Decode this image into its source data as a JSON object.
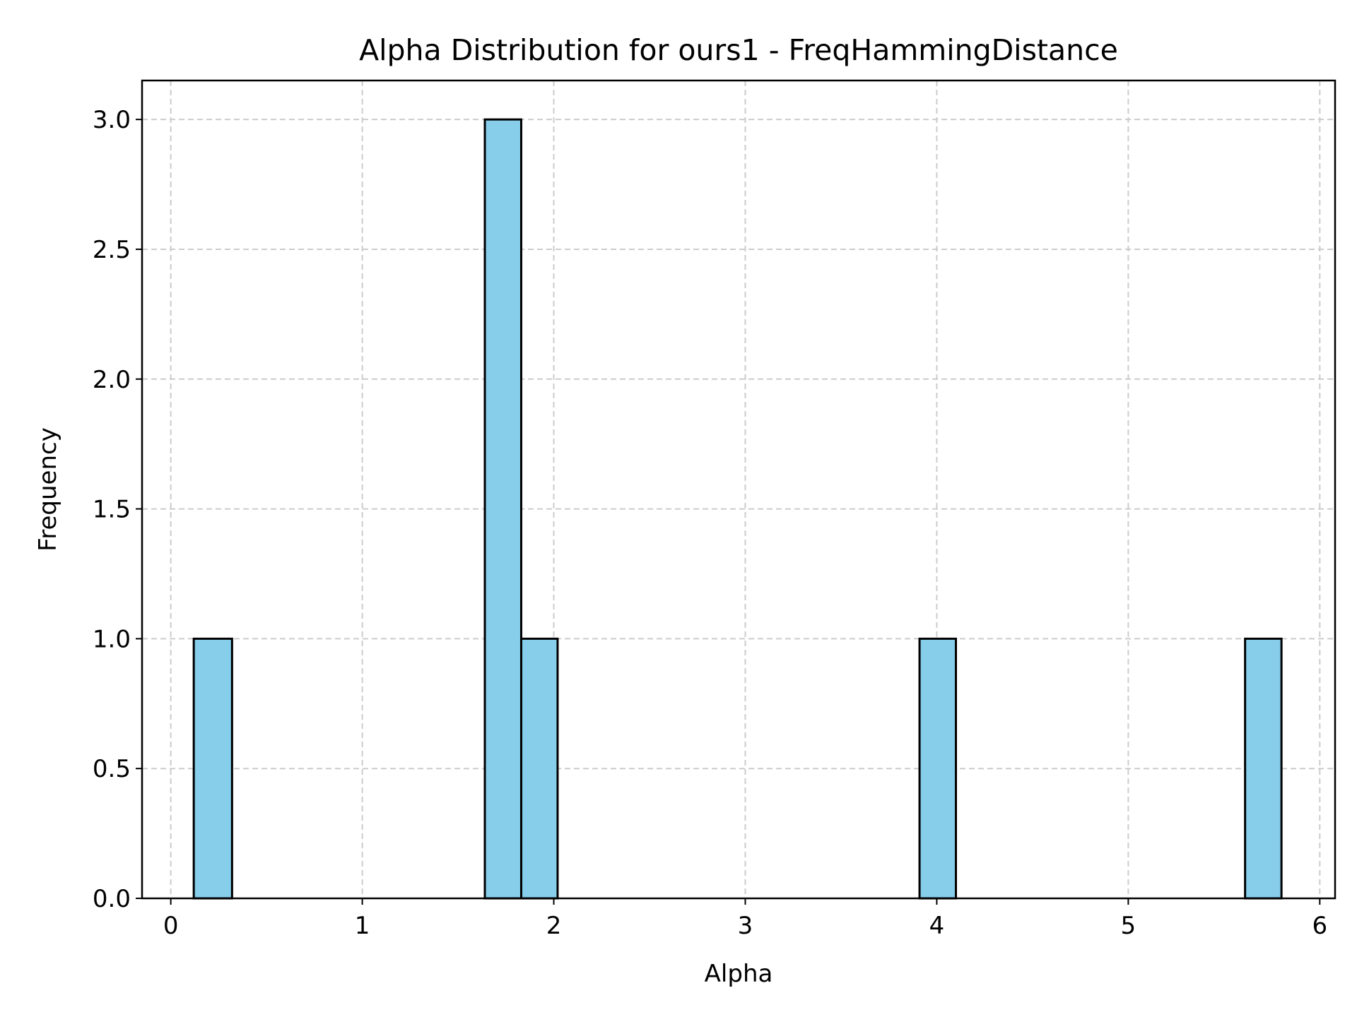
{
  "chart_data": {
    "type": "bar",
    "title": "Alpha Distribution for ours1 - FreqHammingDistance",
    "xlabel": "Alpha",
    "ylabel": "Frequency",
    "xlim": [
      -0.15,
      6.08
    ],
    "ylim": [
      0,
      3.15
    ],
    "xticks": [
      0,
      1,
      2,
      3,
      4,
      5,
      6
    ],
    "xtick_labels": [
      "0",
      "1",
      "2",
      "3",
      "4",
      "5",
      "6"
    ],
    "yticks": [
      0,
      0.5,
      1.0,
      1.5,
      2.0,
      2.5,
      3.0
    ],
    "ytick_labels": [
      "0.0",
      "0.5",
      "1.0",
      "1.5",
      "2.0",
      "2.5",
      "3.0"
    ],
    "grid": true,
    "bar_color": "#87ceeb",
    "edge_color": "#000000",
    "bins": [
      {
        "x0": 0.12,
        "x1": 0.32,
        "value": 1
      },
      {
        "x0": 1.64,
        "x1": 1.83,
        "value": 3
      },
      {
        "x0": 1.83,
        "x1": 2.02,
        "value": 1
      },
      {
        "x0": 3.91,
        "x1": 4.1,
        "value": 1
      },
      {
        "x0": 5.61,
        "x1": 5.8,
        "value": 1
      }
    ]
  }
}
